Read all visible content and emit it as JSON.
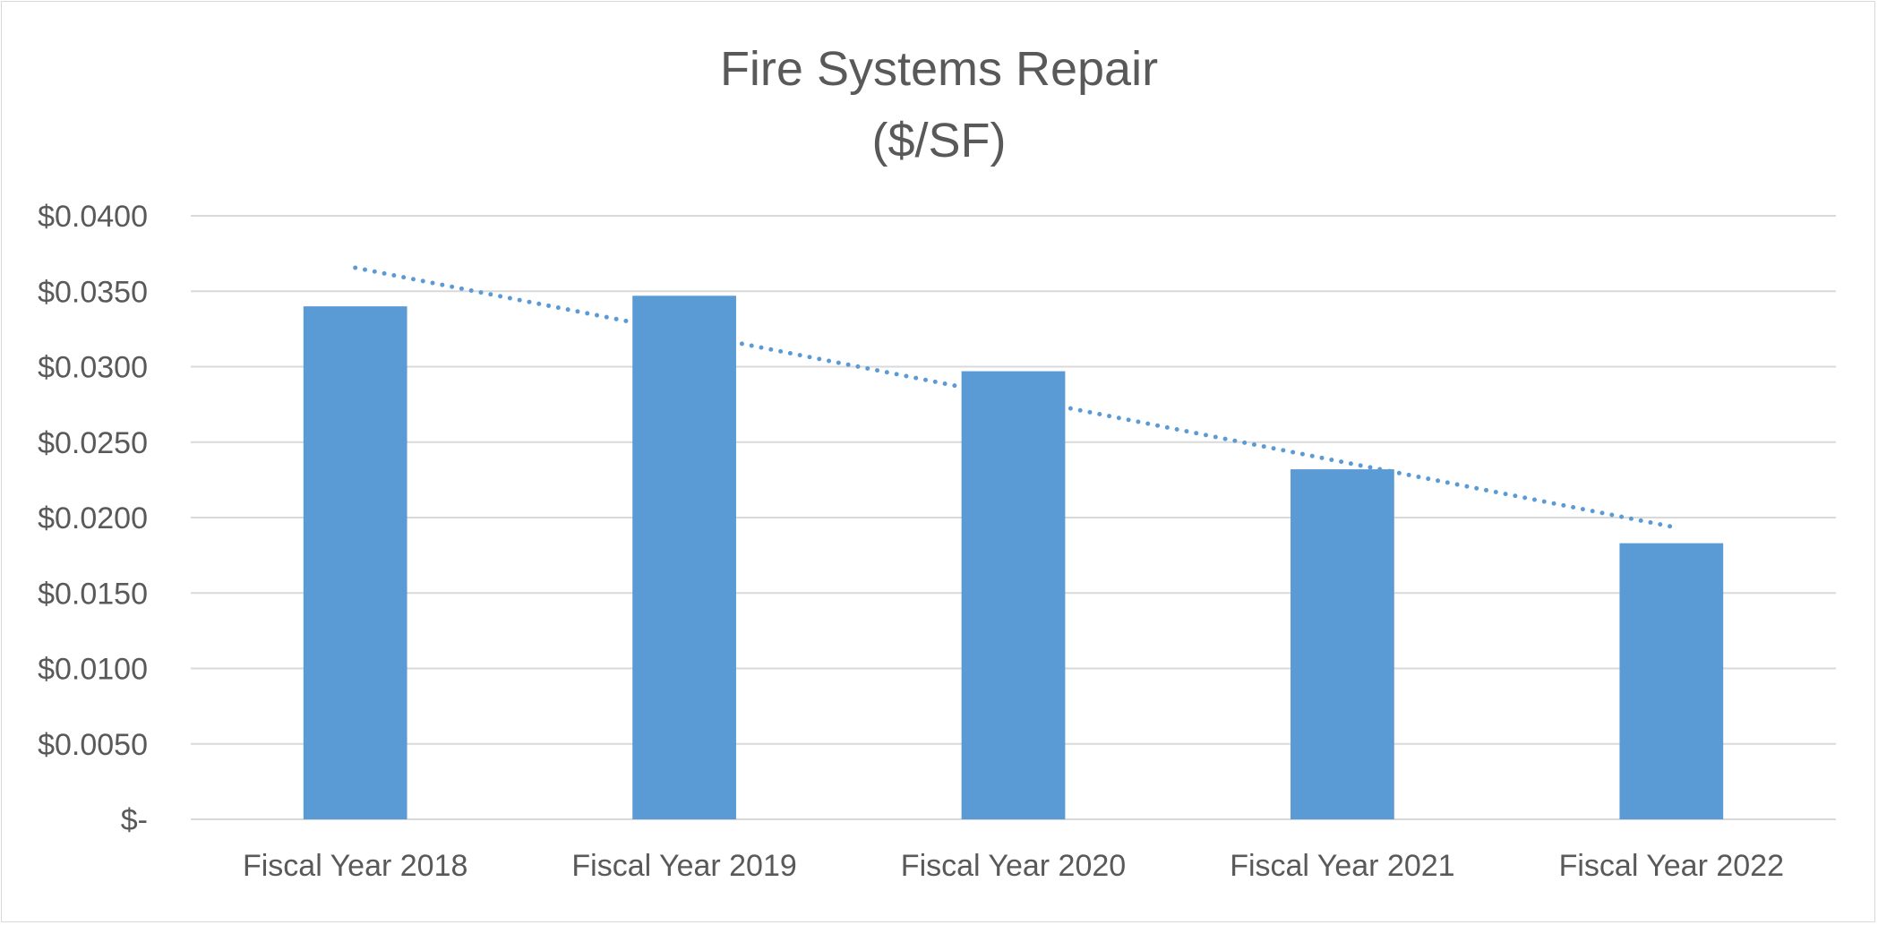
{
  "chart_data": {
    "type": "bar",
    "title_lines": [
      "Fire Systems Repair",
      "($/SF)"
    ],
    "categories": [
      "Fiscal Year 2018",
      "Fiscal Year 2019",
      "Fiscal Year 2020",
      "Fiscal Year 2021",
      "Fiscal Year 2022"
    ],
    "values": [
      0.034,
      0.0347,
      0.0297,
      0.0232,
      0.0183
    ],
    "ylim": [
      0,
      0.04
    ],
    "yticks": [
      0,
      0.005,
      0.01,
      0.015,
      0.02,
      0.025,
      0.03,
      0.035,
      0.04
    ],
    "ytick_labels": [
      "$-",
      "$0.0050",
      "$0.0100",
      "$0.0150",
      "$0.0200",
      "$0.0250",
      "$0.0300",
      "$0.0350",
      "$0.0400"
    ],
    "grid": true,
    "trendline": {
      "type": "linear",
      "style": "dotted"
    },
    "colors": {
      "bar": "#5b9bd5",
      "trend": "#5b9bd5",
      "grid": "#d9d9d9",
      "text": "#595959"
    }
  }
}
